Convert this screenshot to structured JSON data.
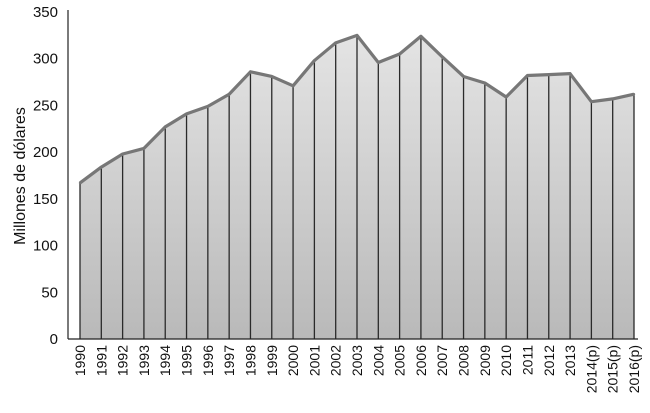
{
  "chart_data": {
    "type": "area",
    "title": "",
    "xlabel": "",
    "ylabel": "Millones de dólares",
    "ylim": [
      0,
      350
    ],
    "yticks": [
      0,
      50,
      100,
      150,
      200,
      250,
      300,
      350
    ],
    "grid": false,
    "legend": "none",
    "categories": [
      "1990",
      "1991",
      "1992",
      "1993",
      "1994",
      "1995",
      "1996",
      "1997",
      "1998",
      "1999",
      "2000",
      "2001",
      "2002",
      "2003",
      "2004",
      "2005",
      "2006",
      "2007",
      "2008",
      "2009",
      "2010",
      "2011",
      "2012",
      "2013",
      "2014(p)",
      "2015(p)",
      "2016(p)"
    ],
    "values": [
      167,
      184,
      198,
      204,
      227,
      241,
      249,
      262,
      286,
      281,
      271,
      298,
      317,
      325,
      296,
      305,
      324,
      302,
      281,
      274,
      259,
      282,
      283,
      284,
      254,
      257,
      262
    ],
    "colors": {
      "line": "#777777",
      "fill_top": "#e4e4e4",
      "fill_bottom": "#b9b9b9",
      "drops": "#2a2a2a",
      "axis": "#222222"
    }
  }
}
